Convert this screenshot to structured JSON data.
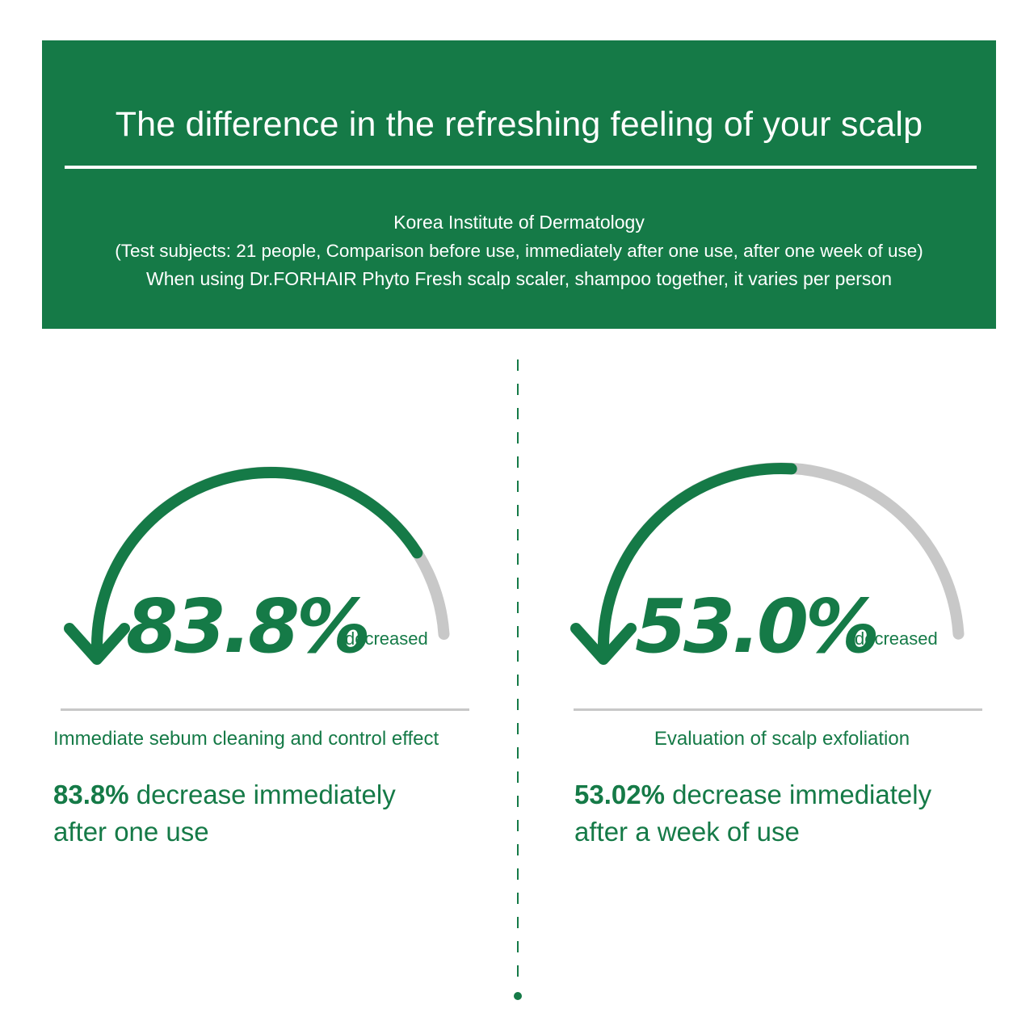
{
  "banner": {
    "title": "The difference in the refreshing feeling of your scalp",
    "source_line_1": "Korea Institute of Dermatology",
    "source_line_2": "(Test subjects: 21 people, Comparison before use, immediately after one use, after one week of use)",
    "source_line_3": "When using Dr.FORHAIR Phyto Fresh scalp scaler, shampoo together, it varies per person"
  },
  "colors": {
    "brand_green": "#157a47",
    "track_gray": "#c8c8c8",
    "background": "#ffffff"
  },
  "panels": [
    {
      "value": 83.8,
      "value_label": "83.8%",
      "suffix": "decreased",
      "heading": "Immediate sebum cleaning and control effect",
      "desc_highlight": "83.8%",
      "desc_line_1_rest": " decrease immediately",
      "desc_line_2": "after one use",
      "icon": "down-arrow-icon"
    },
    {
      "value": 53.02,
      "value_label": "53.0%",
      "suffix": "decreased",
      "heading": "Evaluation of scalp exfoliation",
      "desc_highlight": "53.02%",
      "desc_line_1_rest": " decrease immediately",
      "desc_line_2": "after a week of use",
      "icon": "down-arrow-icon"
    }
  ]
}
